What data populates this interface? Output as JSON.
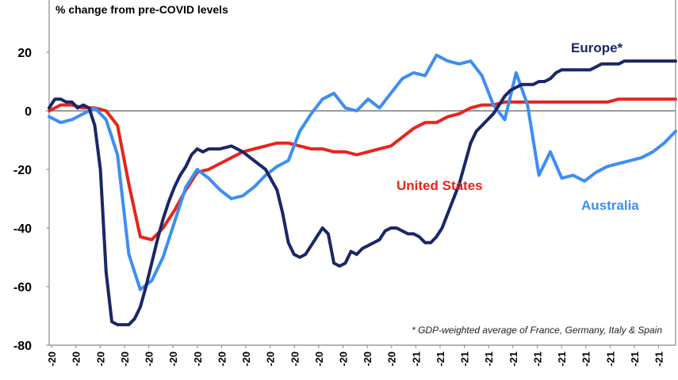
{
  "chart_data": {
    "type": "line",
    "title": "% change from pre-COVID levels",
    "xlabel": "",
    "ylabel": "",
    "ylim": [
      -80,
      30
    ],
    "yticks": [
      20,
      0,
      -20,
      -40,
      -60,
      -80
    ],
    "x_tick_labels": [
      "-20",
      "-20",
      "-20",
      "-20",
      "-20",
      "-20",
      "-20",
      "-20",
      "-20",
      "-20",
      "-20",
      "-20",
      "-20",
      "-20",
      "-20",
      "-21",
      "-21",
      "-21",
      "-21",
      "-21",
      "-21",
      "-21",
      "-21",
      "-21",
      "-21",
      "-21"
    ],
    "zero_line": true,
    "note": "* GDP-weighted average of France, Germany, Italy & Spain",
    "x_range": [
      0,
      110
    ],
    "series": [
      {
        "name": "Europe*",
        "color": "#1a2766",
        "x": [
          0,
          1,
          2,
          3,
          4,
          5,
          6,
          7,
          8,
          9,
          10,
          11,
          12,
          13,
          14,
          15,
          16,
          17,
          18,
          19,
          20,
          21,
          22,
          23,
          24,
          25,
          26,
          27,
          28,
          30,
          32,
          34,
          36,
          38,
          40,
          41,
          42,
          43,
          44,
          45,
          46,
          47,
          48,
          49,
          50,
          51,
          52,
          53,
          54,
          55,
          56,
          57,
          58,
          59,
          60,
          61,
          62,
          63,
          64,
          65,
          66,
          67,
          68,
          69,
          70,
          71,
          72,
          73,
          74,
          75,
          76,
          77,
          78,
          79,
          80,
          81,
          82,
          83,
          84,
          85,
          86,
          87,
          88,
          89,
          90,
          91,
          92,
          93,
          94,
          95,
          96,
          97,
          98,
          99,
          100,
          101,
          102,
          103,
          104,
          105,
          106,
          107,
          108,
          109,
          110
        ],
        "y": [
          1,
          4,
          4,
          3,
          3,
          1,
          2,
          1,
          -5,
          -20,
          -55,
          -72,
          -73,
          -73,
          -73,
          -71,
          -67,
          -60,
          -52,
          -44,
          -37,
          -31,
          -26,
          -22,
          -19,
          -15,
          -13,
          -14,
          -13,
          -13,
          -12,
          -14,
          -17,
          -20,
          -27,
          -35,
          -45,
          -49,
          -50,
          -49,
          -46,
          -43,
          -40,
          -42,
          -52,
          -53,
          -52,
          -48,
          -49,
          -47,
          -46,
          -45,
          -44,
          -41,
          -40,
          -40,
          -41,
          -42,
          -42,
          -43,
          -45,
          -45,
          -43,
          -40,
          -35,
          -30,
          -25,
          -18,
          -11,
          -7,
          -5,
          -3,
          -1,
          2,
          5,
          7,
          8,
          9,
          9,
          9,
          10,
          10,
          11,
          13,
          14,
          14,
          14,
          14,
          14,
          14,
          15,
          16,
          16,
          16,
          16,
          17,
          17,
          17,
          17,
          17,
          17,
          17,
          17,
          17,
          17
        ],
        "label_text": "Europe*"
      },
      {
        "name": "United States",
        "color": "#e8241c",
        "x": [
          0,
          2,
          4,
          6,
          8,
          10,
          12,
          14,
          16,
          18,
          20,
          22,
          24,
          26,
          28,
          30,
          32,
          34,
          36,
          38,
          40,
          42,
          44,
          46,
          48,
          50,
          52,
          54,
          56,
          58,
          60,
          62,
          64,
          66,
          68,
          70,
          72,
          74,
          76,
          78,
          80,
          82,
          84,
          86,
          88,
          90,
          92,
          94,
          96,
          98,
          100,
          102,
          104,
          106,
          108,
          110
        ],
        "y": [
          0,
          2,
          2,
          1,
          1,
          0,
          -5,
          -25,
          -43,
          -44,
          -40,
          -34,
          -27,
          -21,
          -20,
          -18,
          -16,
          -14,
          -13,
          -12,
          -11,
          -11,
          -12,
          -13,
          -13,
          -14,
          -14,
          -15,
          -14,
          -13,
          -12,
          -9,
          -6,
          -4,
          -4,
          -2,
          -1,
          1,
          2,
          2,
          3,
          3,
          3,
          3,
          3,
          3,
          3,
          3,
          3,
          3,
          4,
          4,
          4,
          4,
          4,
          4
        ],
        "label_text": "United States"
      },
      {
        "name": "Australia",
        "color": "#3d8ef2",
        "x": [
          0,
          2,
          4,
          6,
          8,
          10,
          12,
          14,
          16,
          18,
          20,
          22,
          24,
          26,
          28,
          30,
          32,
          34,
          36,
          38,
          40,
          42,
          44,
          46,
          48,
          50,
          52,
          54,
          56,
          58,
          60,
          62,
          64,
          66,
          68,
          70,
          72,
          74,
          76,
          78,
          80,
          82,
          84,
          86,
          88,
          90,
          92,
          94,
          96,
          98,
          100,
          102,
          104,
          106,
          108,
          110
        ],
        "y": [
          -2,
          -4,
          -3,
          -1,
          1,
          -3,
          -15,
          -49,
          -61,
          -58,
          -50,
          -38,
          -26,
          -20,
          -23,
          -27,
          -30,
          -29,
          -26,
          -22,
          -19,
          -17,
          -7,
          -1,
          4,
          6,
          1,
          0,
          4,
          1,
          6,
          11,
          13,
          12,
          19,
          17,
          16,
          17,
          12,
          2,
          -3,
          13,
          2,
          -22,
          -14,
          -23,
          -22,
          -24,
          -21,
          -19,
          -18,
          -17,
          -16,
          -14,
          -11,
          -7
        ],
        "label_text": "Australia"
      }
    ]
  }
}
